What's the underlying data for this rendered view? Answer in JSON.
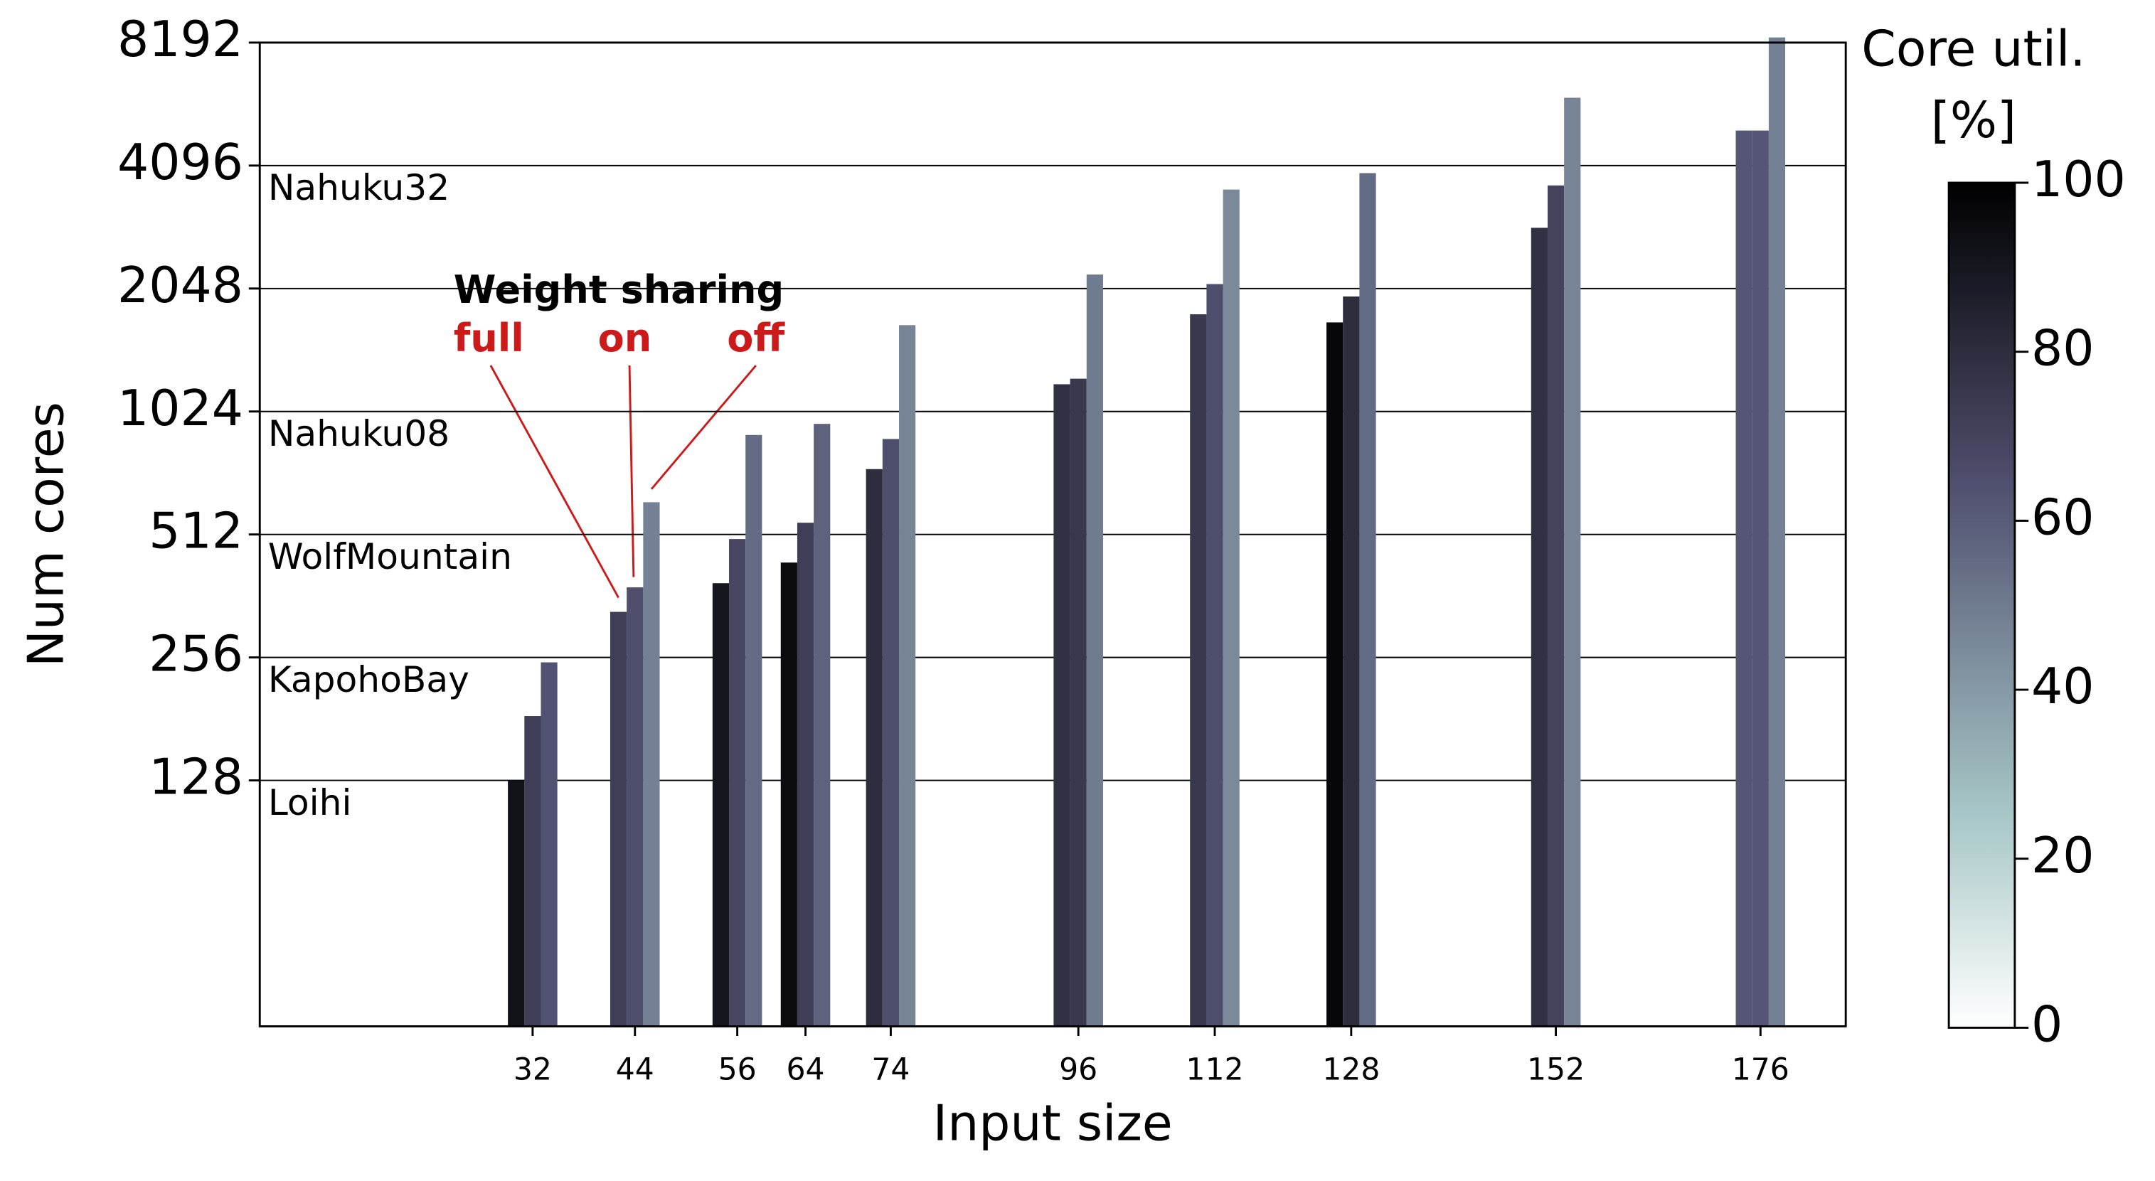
{
  "chart_data": {
    "type": "bar",
    "xlabel": "Input size",
    "ylabel": "Num cores",
    "legend_title": "Weight sharing",
    "x": [
      32,
      44,
      56,
      64,
      74,
      96,
      112,
      128,
      152,
      176
    ],
    "xlim": [
      0,
      186
    ],
    "xticks": [
      32,
      44,
      56,
      64,
      74,
      96,
      112,
      128,
      152,
      176
    ],
    "ylim": [
      32,
      8192
    ],
    "yscale": "log2",
    "yticks": [
      128,
      256,
      512,
      1024,
      2048,
      4096,
      8192
    ],
    "grid": true,
    "series": [
      {
        "name": "full",
        "color": "#cc1a1a",
        "values": [
          128,
          331,
          389,
          437,
          740,
          1194,
          1771,
          1692,
          2884,
          4990
        ],
        "utilization": [
          92,
          72,
          90,
          95,
          80,
          78,
          75,
          97,
          78,
          62
        ]
      },
      {
        "name": "on",
        "color": "#cc1a1a",
        "values": [
          184,
          380,
          499,
          547,
          877,
          1232,
          2100,
          1958,
          3662,
          4990
        ],
        "utilization": [
          72,
          65,
          68,
          72,
          65,
          75,
          65,
          80,
          70,
          62
        ]
      },
      {
        "name": "off",
        "color": "#cc1a1a",
        "values": [
          249,
          614,
          897,
          955,
          1666,
          2216,
          3578,
          3925,
          6003,
          8434
        ],
        "utilization": [
          63,
          48,
          55,
          58,
          47,
          50,
          45,
          55,
          47,
          48
        ]
      }
    ],
    "hardware": [
      {
        "name": "Loihi",
        "cores": 128
      },
      {
        "name": "KapohoBay",
        "cores": 256
      },
      {
        "name": "WolfMountain",
        "cores": 512
      },
      {
        "name": "Nahuku08",
        "cores": 1024
      },
      {
        "name": "Nahuku32",
        "cores": 4096
      }
    ],
    "colorbar": {
      "title": "Core util.",
      "unit": "[%]",
      "colormap": "bone_r",
      "lim": [
        0,
        100
      ],
      "ticks": [
        0,
        20,
        40,
        60,
        80,
        100
      ]
    }
  }
}
